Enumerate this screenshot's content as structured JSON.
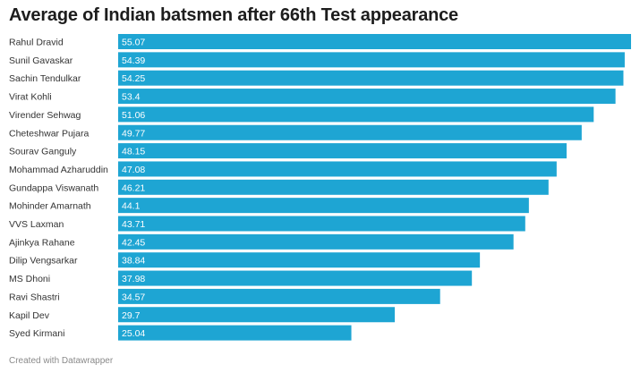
{
  "chart_data": {
    "type": "bar",
    "orientation": "horizontal",
    "title": "Average of Indian batsmen after 66th Test appearance",
    "categories": [
      "Rahul Dravid",
      "Sunil Gavaskar",
      "Sachin Tendulkar",
      "Virat Kohli",
      "Virender Sehwag",
      "Cheteshwar Pujara",
      "Sourav Ganguly",
      "Mohammad Azharuddin",
      "Gundappa Viswanath",
      "Mohinder Amarnath",
      "VVS Laxman",
      "Ajinkya Rahane",
      "Dilip Vengsarkar",
      "MS Dhoni",
      "Ravi Shastri",
      "Kapil Dev",
      "Syed Kirmani"
    ],
    "value_labels": [
      "55.07",
      "54.39",
      "54.25",
      "53.4",
      "51.06",
      "49.77",
      "48.15",
      "47.08",
      "46.21",
      "44.1",
      "43.71",
      "42.45",
      "38.84",
      "37.98",
      "34.57",
      "29.7",
      "25.04"
    ],
    "values": [
      55.07,
      54.39,
      54.25,
      53.4,
      51.06,
      49.77,
      48.15,
      47.08,
      46.21,
      44.1,
      43.71,
      42.45,
      38.84,
      37.98,
      34.57,
      29.7,
      25.04
    ],
    "xlim": [
      0,
      55.07
    ],
    "grid": false,
    "bar_color": "#1ea5d3"
  },
  "footer": "Created with Datawrapper"
}
